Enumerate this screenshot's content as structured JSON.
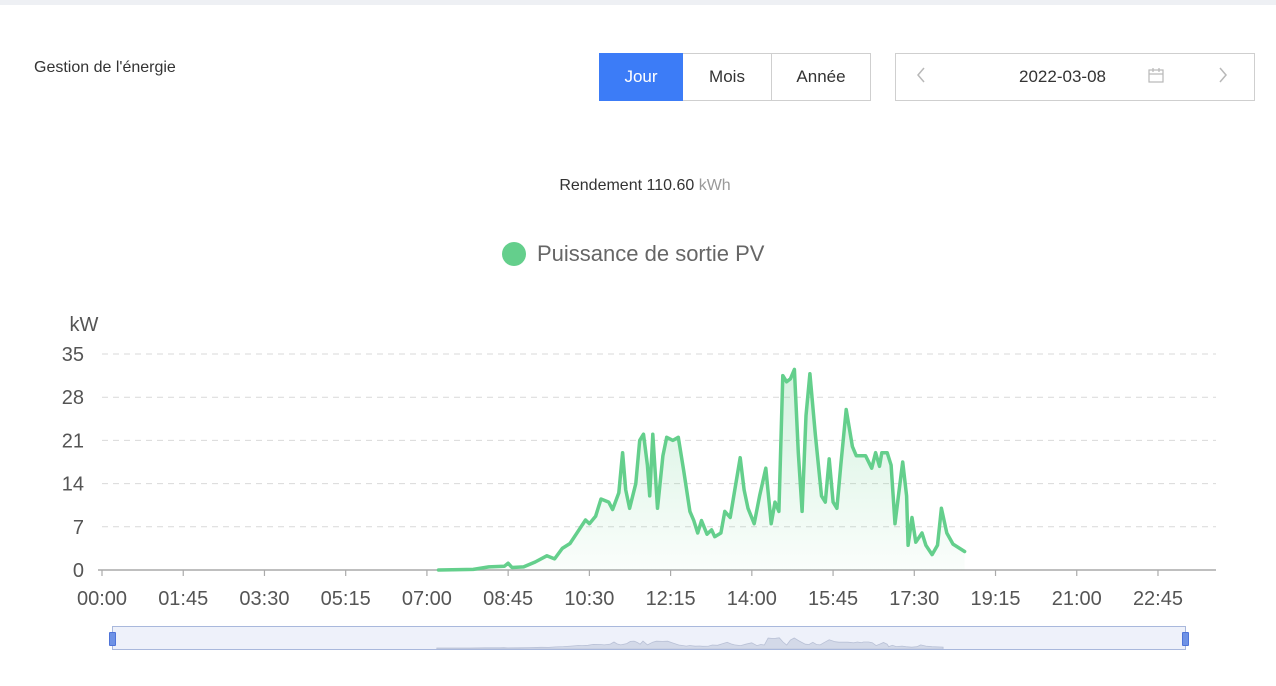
{
  "app": {
    "title": "Gestion de l'énergie"
  },
  "period_tabs": [
    {
      "label": "Jour",
      "active": true
    },
    {
      "label": "Mois",
      "active": false
    },
    {
      "label": "Année",
      "active": false
    }
  ],
  "date_picker": {
    "value": "2022-03-08",
    "prev_icon": "chevron-left-icon",
    "next_icon": "chevron-right-icon",
    "calendar_icon": "calendar-icon"
  },
  "summary": {
    "label": "Rendement",
    "value": "110.60",
    "unit": "kWh"
  },
  "colors": {
    "accent": "#3c7cf7",
    "series": "#64cf8c",
    "grid": "#d9d9d9",
    "slider_border": "#a9b8dc"
  },
  "chart_data": {
    "type": "area",
    "legend": "Puissance de sortie PV",
    "ylabel": "kW",
    "ylim": [
      0,
      35
    ],
    "yticks": [
      0,
      7,
      14,
      21,
      28,
      35
    ],
    "xlim": [
      "00:00",
      "24:00"
    ],
    "xticks": [
      "00:00",
      "01:45",
      "03:30",
      "05:15",
      "07:00",
      "08:45",
      "10:30",
      "12:15",
      "14:00",
      "15:45",
      "17:30",
      "19:15",
      "21:00",
      "22:45"
    ],
    "grid": true,
    "series": [
      {
        "name": "Puissance de sortie PV",
        "points": [
          [
            "07:15",
            0
          ],
          [
            "08:00",
            0.1
          ],
          [
            "08:20",
            0.5
          ],
          [
            "08:40",
            0.6
          ],
          [
            "08:45",
            1.1
          ],
          [
            "08:50",
            0.4
          ],
          [
            "09:05",
            0.5
          ],
          [
            "09:20",
            1.3
          ],
          [
            "09:35",
            2.3
          ],
          [
            "09:45",
            1.8
          ],
          [
            "09:55",
            3.5
          ],
          [
            "10:05",
            4.3
          ],
          [
            "10:15",
            6.2
          ],
          [
            "10:25",
            8.1
          ],
          [
            "10:30",
            7.5
          ],
          [
            "10:38",
            8.7
          ],
          [
            "10:45",
            11.5
          ],
          [
            "10:55",
            11
          ],
          [
            "11:00",
            9.8
          ],
          [
            "11:08",
            12.5
          ],
          [
            "11:13",
            19
          ],
          [
            "11:17",
            13
          ],
          [
            "11:22",
            10
          ],
          [
            "11:30",
            14
          ],
          [
            "11:35",
            21
          ],
          [
            "11:40",
            22
          ],
          [
            "11:45",
            17
          ],
          [
            "11:48",
            12
          ],
          [
            "11:52",
            22
          ],
          [
            "11:58",
            10
          ],
          [
            "12:05",
            18.5
          ],
          [
            "12:10",
            21.5
          ],
          [
            "12:18",
            21
          ],
          [
            "12:25",
            21.5
          ],
          [
            "12:32",
            16
          ],
          [
            "12:40",
            9.5
          ],
          [
            "12:45",
            8
          ],
          [
            "12:50",
            6
          ],
          [
            "12:55",
            8
          ],
          [
            "13:02",
            5.8
          ],
          [
            "13:08",
            6.5
          ],
          [
            "13:12",
            5.4
          ],
          [
            "13:20",
            6
          ],
          [
            "13:25",
            9.5
          ],
          [
            "13:32",
            8.5
          ],
          [
            "13:38",
            13
          ],
          [
            "13:45",
            18.2
          ],
          [
            "13:50",
            13
          ],
          [
            "13:55",
            10
          ],
          [
            "14:03",
            7.5
          ],
          [
            "14:10",
            12
          ],
          [
            "14:18",
            16.5
          ],
          [
            "14:25",
            7.5
          ],
          [
            "14:30",
            11
          ],
          [
            "14:35",
            9.5
          ],
          [
            "14:40",
            31.5
          ],
          [
            "14:45",
            30.5
          ],
          [
            "14:50",
            31
          ],
          [
            "14:55",
            32.5
          ],
          [
            "15:00",
            19
          ],
          [
            "15:05",
            9.5
          ],
          [
            "15:10",
            25
          ],
          [
            "15:15",
            31.8
          ],
          [
            "15:22",
            22
          ],
          [
            "15:30",
            12
          ],
          [
            "15:35",
            11
          ],
          [
            "15:40",
            18
          ],
          [
            "15:45",
            11
          ],
          [
            "15:50",
            10
          ],
          [
            "15:55",
            17
          ],
          [
            "16:02",
            26
          ],
          [
            "16:10",
            20
          ],
          [
            "16:15",
            18.5
          ],
          [
            "16:22",
            18.5
          ],
          [
            "16:27",
            18.5
          ],
          [
            "16:35",
            16.5
          ],
          [
            "16:40",
            19
          ],
          [
            "16:45",
            16.8
          ],
          [
            "16:48",
            19
          ],
          [
            "16:55",
            19
          ],
          [
            "17:00",
            17
          ],
          [
            "17:05",
            7.5
          ],
          [
            "17:10",
            12.5
          ],
          [
            "17:15",
            17.5
          ],
          [
            "17:20",
            12
          ],
          [
            "17:22",
            4
          ],
          [
            "17:27",
            8.5
          ],
          [
            "17:32",
            4.5
          ],
          [
            "17:40",
            6
          ],
          [
            "17:45",
            4
          ],
          [
            "17:53",
            2.5
          ],
          [
            "18:00",
            4
          ],
          [
            "18:05",
            10
          ],
          [
            "18:12",
            6
          ],
          [
            "18:20",
            4.2
          ],
          [
            "18:35",
            3
          ]
        ]
      }
    ]
  }
}
